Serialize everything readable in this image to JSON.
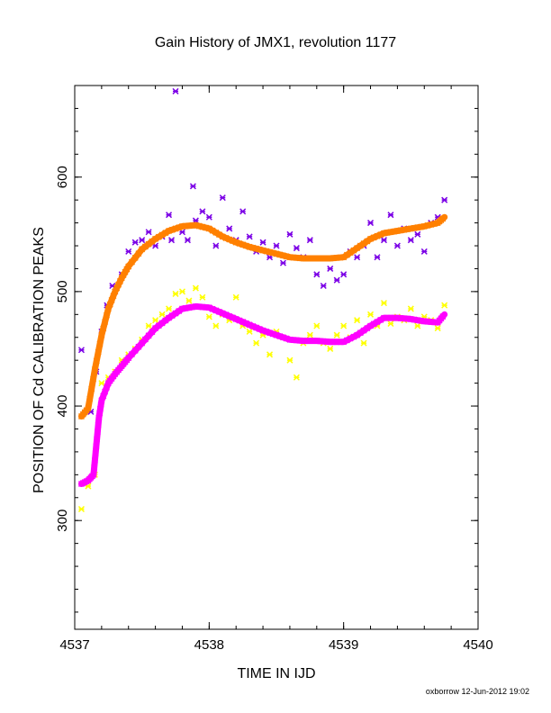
{
  "chart_data": {
    "type": "scatter",
    "title": "Gain History of JMX1, revolution 1177",
    "xlabel": "TIME IN IJD",
    "ylabel": "POSITION OF Cd CALIBRATION PEAKS",
    "xlim": [
      4537,
      4540
    ],
    "ylim": [
      205,
      680
    ],
    "xticks": [
      4537,
      4538,
      4539,
      4540
    ],
    "yticks": [
      300,
      400,
      500,
      600
    ],
    "grid": false,
    "credit": "oxborrow 12-Jun-2012 19:02",
    "series": [
      {
        "color": "#ff8000",
        "style": "curve",
        "x": [
          4537.05,
          4537.1,
          4537.15,
          4537.2,
          4537.25,
          4537.3,
          4537.35,
          4537.4,
          4537.5,
          4537.6,
          4537.7,
          4537.8,
          4537.9,
          4538.0,
          4538.1,
          4538.2,
          4538.3,
          4538.4,
          4538.5,
          4538.6,
          4538.7,
          4538.8,
          4538.9,
          4539.0,
          4539.1,
          4539.2,
          4539.3,
          4539.4,
          4539.5,
          4539.6,
          4539.7,
          4539.75
        ],
        "y": [
          391,
          398,
          432,
          462,
          485,
          500,
          512,
          522,
          537,
          546,
          553,
          557,
          558,
          555,
          548,
          543,
          539,
          536,
          533,
          530,
          529,
          529,
          529,
          530,
          538,
          546,
          551,
          553,
          555,
          557,
          560,
          565
        ]
      },
      {
        "color": "#ff00ff",
        "style": "curve",
        "x": [
          4537.05,
          4537.1,
          4537.14,
          4537.16,
          4537.18,
          4537.2,
          4537.25,
          4537.3,
          4537.35,
          4537.4,
          4537.5,
          4537.6,
          4537.7,
          4537.8,
          4537.9,
          4538.0,
          4538.1,
          4538.2,
          4538.3,
          4538.4,
          4538.5,
          4538.6,
          4538.7,
          4538.8,
          4538.9,
          4539.0,
          4539.1,
          4539.2,
          4539.3,
          4539.4,
          4539.5,
          4539.6,
          4539.7,
          4539.75
        ],
        "y": [
          332,
          335,
          340,
          365,
          390,
          405,
          420,
          428,
          435,
          442,
          455,
          468,
          477,
          485,
          487,
          486,
          481,
          476,
          471,
          466,
          462,
          458,
          457,
          457,
          456,
          456,
          462,
          470,
          477,
          477,
          476,
          474,
          473,
          480
        ]
      },
      {
        "color": "#7b00e6",
        "style": "points",
        "x": [
          4537.05,
          4537.12,
          4537.16,
          4537.2,
          4537.24,
          4537.28,
          4537.3,
          4537.35,
          4537.4,
          4537.45,
          4537.5,
          4537.55,
          4537.6,
          4537.65,
          4537.7,
          4537.72,
          4537.75,
          4537.8,
          4537.84,
          4537.88,
          4537.9,
          4537.95,
          4538.0,
          4538.05,
          4538.1,
          4538.15,
          4538.2,
          4538.25,
          4538.3,
          4538.35,
          4538.4,
          4538.45,
          4538.5,
          4538.55,
          4538.6,
          4538.65,
          4538.7,
          4538.75,
          4538.8,
          4538.85,
          4538.9,
          4538.95,
          4539.0,
          4539.05,
          4539.1,
          4539.15,
          4539.2,
          4539.25,
          4539.3,
          4539.35,
          4539.4,
          4539.45,
          4539.5,
          4539.55,
          4539.6,
          4539.65,
          4539.7,
          4539.75
        ],
        "y": [
          449,
          395,
          430,
          465,
          488,
          505,
          500,
          515,
          535,
          543,
          545,
          552,
          540,
          548,
          567,
          545,
          675,
          552,
          545,
          592,
          562,
          570,
          565,
          540,
          582,
          555,
          545,
          570,
          548,
          535,
          543,
          530,
          540,
          525,
          550,
          538,
          530,
          545,
          515,
          505,
          520,
          510,
          515,
          535,
          530,
          540,
          560,
          530,
          545,
          567,
          540,
          555,
          545,
          550,
          535,
          560,
          565,
          580
        ]
      },
      {
        "color": "#ffff00",
        "style": "points",
        "x": [
          4537.05,
          4537.1,
          4537.15,
          4537.2,
          4537.25,
          4537.3,
          4537.35,
          4537.4,
          4537.45,
          4537.5,
          4537.55,
          4537.6,
          4537.65,
          4537.7,
          4537.75,
          4537.8,
          4537.85,
          4537.9,
          4537.95,
          4538.0,
          4538.05,
          4538.1,
          4538.15,
          4538.2,
          4538.25,
          4538.3,
          4538.35,
          4538.4,
          4538.45,
          4538.5,
          4538.55,
          4538.6,
          4538.65,
          4538.7,
          4538.75,
          4538.8,
          4538.85,
          4538.9,
          4538.95,
          4539.0,
          4539.05,
          4539.1,
          4539.15,
          4539.2,
          4539.25,
          4539.3,
          4539.35,
          4539.4,
          4539.45,
          4539.5,
          4539.55,
          4539.6,
          4539.65,
          4539.7,
          4539.75
        ],
        "y": [
          310,
          330,
          340,
          420,
          425,
          430,
          440,
          445,
          450,
          458,
          470,
          475,
          480,
          485,
          498,
          500,
          492,
          503,
          495,
          478,
          470,
          480,
          475,
          495,
          470,
          465,
          455,
          462,
          445,
          465,
          460,
          440,
          425,
          455,
          462,
          470,
          455,
          450,
          462,
          470,
          460,
          475,
          455,
          480,
          470,
          490,
          472,
          478,
          475,
          485,
          470,
          478,
          475,
          468,
          488
        ]
      }
    ]
  }
}
